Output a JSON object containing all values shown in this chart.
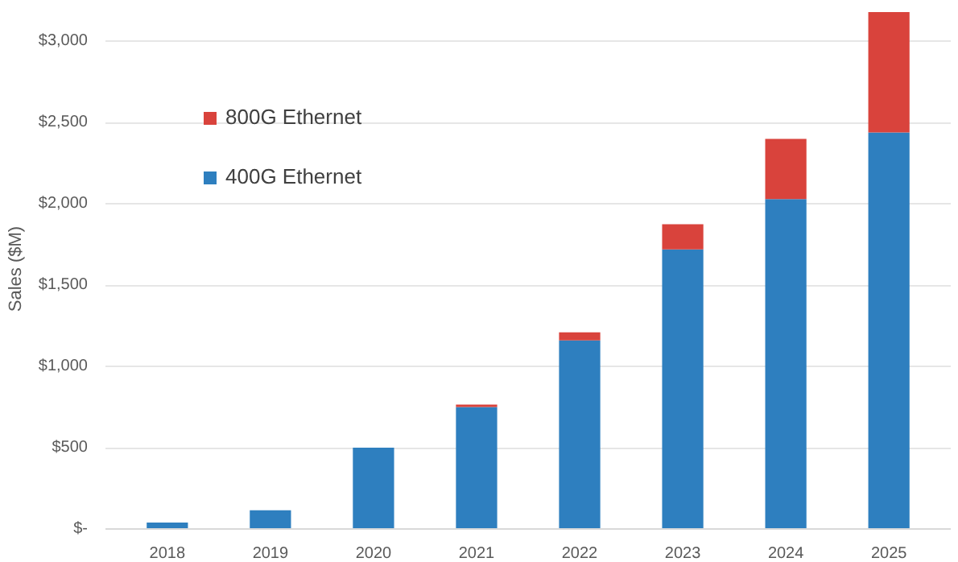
{
  "chart_data": {
    "type": "bar",
    "stacked": true,
    "ylabel": "Sales ($M)",
    "categories": [
      "2018",
      "2019",
      "2020",
      "2021",
      "2022",
      "2023",
      "2024",
      "2025"
    ],
    "series": [
      {
        "name": "400G Ethernet",
        "color": "#2e7fbf",
        "values": [
          40,
          115,
          500,
          750,
          1160,
          1720,
          2030,
          2440
        ]
      },
      {
        "name": "800G Ethernet",
        "color": "#d9433c",
        "values": [
          null,
          null,
          null,
          15,
          50,
          155,
          370,
          740
        ]
      }
    ],
    "ylim": [
      0,
      3200
    ],
    "yticks": [
      {
        "value": 0,
        "label": "$-"
      },
      {
        "value": 500,
        "label": "$500"
      },
      {
        "value": 1000,
        "label": "$1,000"
      },
      {
        "value": 1500,
        "label": "$1,500"
      },
      {
        "value": 2000,
        "label": "$2,000"
      },
      {
        "value": 2500,
        "label": "$2,500"
      },
      {
        "value": 3000,
        "label": "$3,000"
      }
    ],
    "grid": "y",
    "legend": "top left"
  }
}
